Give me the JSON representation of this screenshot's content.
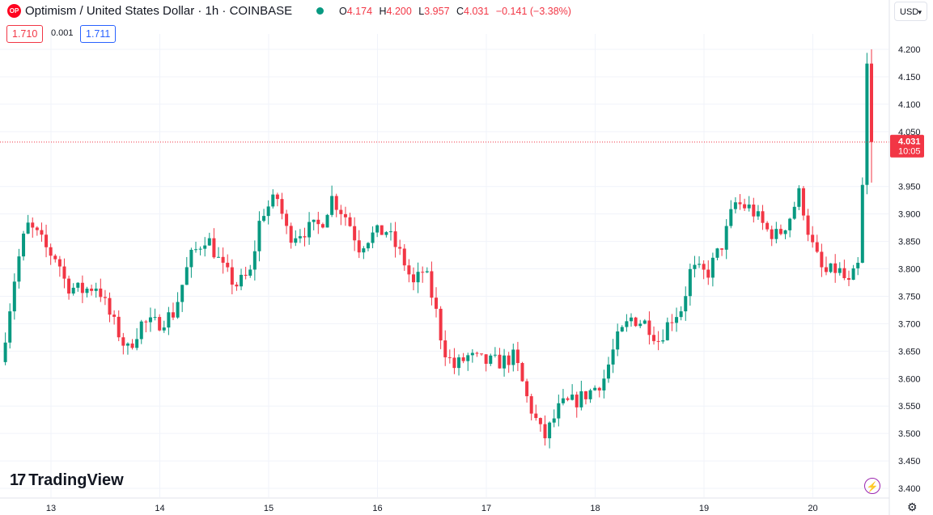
{
  "header": {
    "logo_text": "OP",
    "symbol": "Optimism / United States Dollar · 1h · COINBASE",
    "ohlc": {
      "o_label": "O",
      "o": "4.174",
      "h_label": "H",
      "h": "4.200",
      "l_label": "L",
      "l": "3.957",
      "c_label": "C",
      "c": "4.031",
      "change": "−0.141 (−3.38%)"
    },
    "sell": "1.710",
    "spread": "0.001",
    "buy": "1.711",
    "currency": "USD"
  },
  "brand": {
    "mark": "17",
    "name": "TradingView"
  },
  "colors": {
    "up": "#089981",
    "down": "#f23645",
    "grid": "#f0f3fa"
  },
  "chart_data": {
    "type": "candlestick",
    "title": "",
    "xlabel": "",
    "ylabel": "",
    "ylim": [
      3.4,
      4.2
    ],
    "y_ticks": [
      "4.200",
      "4.150",
      "4.100",
      "4.050",
      "3.950",
      "3.900",
      "3.850",
      "3.800",
      "3.750",
      "3.700",
      "3.650",
      "3.600",
      "3.550",
      "3.500",
      "3.450",
      "3.400"
    ],
    "x_ticks": [
      {
        "label": "13",
        "day": 13
      },
      {
        "label": "14",
        "day": 14
      },
      {
        "label": "15",
        "day": 15
      },
      {
        "label": "16",
        "day": 16
      },
      {
        "label": "17",
        "day": 17
      },
      {
        "label": "18",
        "day": 18
      },
      {
        "label": "19",
        "day": 19
      },
      {
        "label": "20",
        "day": 20
      }
    ],
    "start_day": 12.56,
    "end_day": 20.56,
    "last_price": "4.031",
    "countdown": "10:05",
    "anchors": [
      [
        12.56,
        3.63
      ],
      [
        12.7,
        3.8
      ],
      [
        12.8,
        3.88
      ],
      [
        12.9,
        3.86
      ],
      [
        13.0,
        3.83
      ],
      [
        13.08,
        3.82
      ],
      [
        13.16,
        3.77
      ],
      [
        13.3,
        3.76
      ],
      [
        13.45,
        3.77
      ],
      [
        13.55,
        3.72
      ],
      [
        13.65,
        3.68
      ],
      [
        13.72,
        3.65
      ],
      [
        13.85,
        3.7
      ],
      [
        14.0,
        3.7
      ],
      [
        14.15,
        3.72
      ],
      [
        14.3,
        3.82
      ],
      [
        14.45,
        3.86
      ],
      [
        14.6,
        3.8
      ],
      [
        14.72,
        3.77
      ],
      [
        14.85,
        3.79
      ],
      [
        14.95,
        3.9
      ],
      [
        15.1,
        3.93
      ],
      [
        15.2,
        3.86
      ],
      [
        15.35,
        3.87
      ],
      [
        15.5,
        3.88
      ],
      [
        15.6,
        3.93
      ],
      [
        15.75,
        3.89
      ],
      [
        15.85,
        3.84
      ],
      [
        15.95,
        3.86
      ],
      [
        16.1,
        3.87
      ],
      [
        16.25,
        3.82
      ],
      [
        16.35,
        3.77
      ],
      [
        16.45,
        3.8
      ],
      [
        16.55,
        3.73
      ],
      [
        16.62,
        3.66
      ],
      [
        16.72,
        3.62
      ],
      [
        16.85,
        3.64
      ],
      [
        17.0,
        3.63
      ],
      [
        17.15,
        3.63
      ],
      [
        17.28,
        3.64
      ],
      [
        17.4,
        3.56
      ],
      [
        17.55,
        3.49
      ],
      [
        17.7,
        3.55
      ],
      [
        17.85,
        3.56
      ],
      [
        18.0,
        3.58
      ],
      [
        18.1,
        3.6
      ],
      [
        18.22,
        3.67
      ],
      [
        18.35,
        3.71
      ],
      [
        18.5,
        3.7
      ],
      [
        18.6,
        3.67
      ],
      [
        18.72,
        3.71
      ],
      [
        18.82,
        3.73
      ],
      [
        18.9,
        3.8
      ],
      [
        19.05,
        3.79
      ],
      [
        19.2,
        3.85
      ],
      [
        19.3,
        3.92
      ],
      [
        19.45,
        3.91
      ],
      [
        19.6,
        3.87
      ],
      [
        19.7,
        3.86
      ],
      [
        19.8,
        3.89
      ],
      [
        19.9,
        3.94
      ],
      [
        20.0,
        3.85
      ],
      [
        20.12,
        3.79
      ],
      [
        20.25,
        3.8
      ],
      [
        20.35,
        3.77
      ],
      [
        20.45,
        3.81
      ],
      [
        20.52,
        4.17
      ],
      [
        20.56,
        4.031
      ]
    ]
  }
}
